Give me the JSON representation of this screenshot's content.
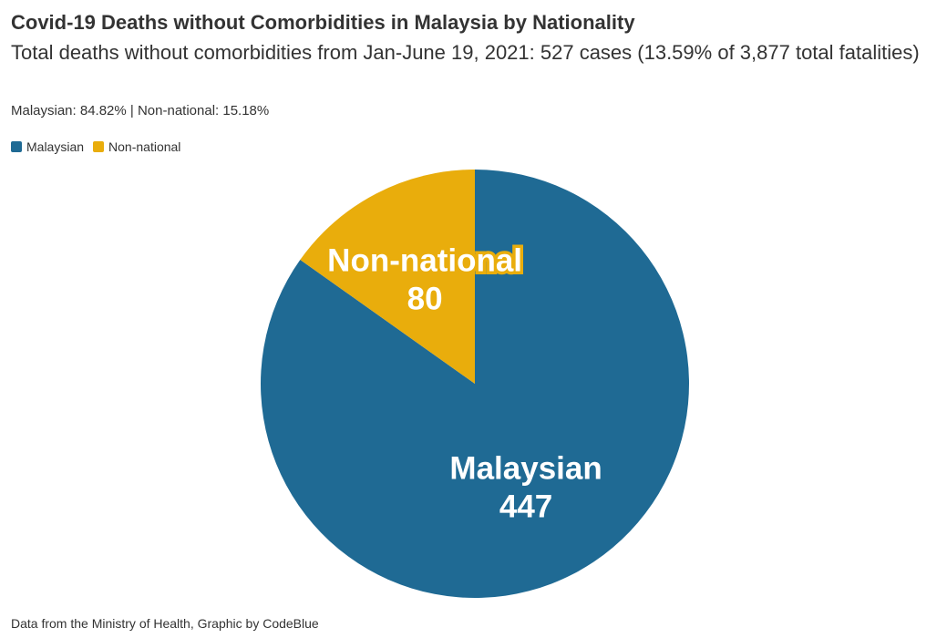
{
  "header": {
    "title": "Covid-19 Deaths without Comorbidities in Malaysia by Nationality",
    "subtitle": "Total deaths without comorbidities from Jan-June 19, 2021: 527 cases (13.59% of 3,877 total fatalities)",
    "note": "Malaysian: 84.82% | Non-national: 15.18%"
  },
  "legend": {
    "items": [
      {
        "label": "Malaysian",
        "color": "#1f6a94"
      },
      {
        "label": "Non-national",
        "color": "#e9ad0c"
      }
    ]
  },
  "footer": {
    "source": "Data from the Ministry of Health, Graphic by CodeBlue"
  },
  "chart_data": {
    "type": "pie",
    "title": "Covid-19 Deaths without Comorbidities in Malaysia by Nationality",
    "categories": [
      "Malaysian",
      "Non-national"
    ],
    "values": [
      447,
      80
    ],
    "colors": [
      "#1f6a94",
      "#e9ad0c"
    ],
    "legend_position": "top-left",
    "data_labels": [
      {
        "name": "Malaysian",
        "value": "447"
      },
      {
        "name": "Non-national",
        "value": "80"
      }
    ]
  }
}
